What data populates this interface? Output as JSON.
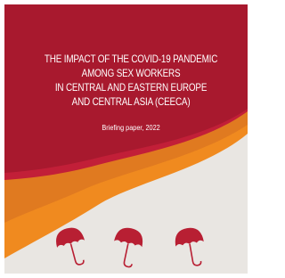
{
  "cover": {
    "title_lines": [
      "THE IMPACT OF THE COVID-19 PANDEMIC",
      "AMONG SEX WORKERS",
      "IN CENTRAL AND EASTERN EUROPE",
      "AND CENTRAL ASIA (CEECA)"
    ],
    "subtitle": "Briefing paper, 2022"
  }
}
